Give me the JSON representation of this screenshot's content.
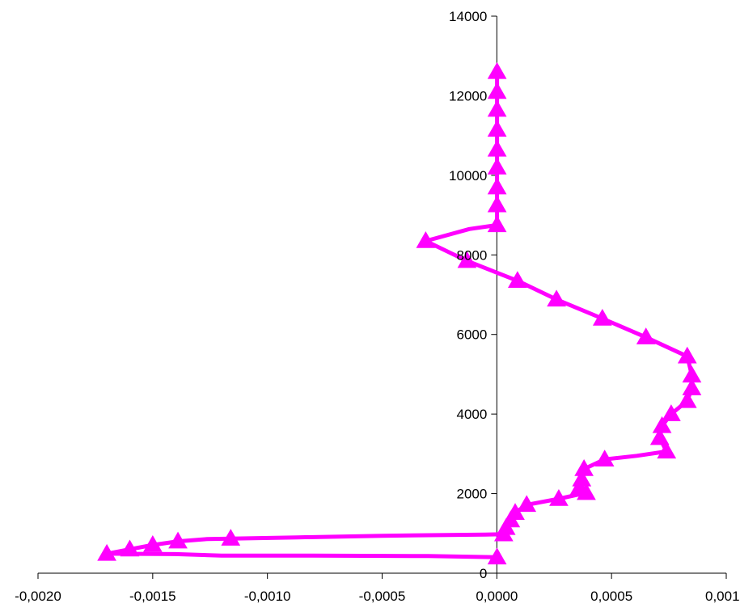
{
  "chart_data": {
    "type": "line",
    "title": "",
    "xlabel": "",
    "ylabel": "",
    "xlim": [
      -0.002,
      0.001
    ],
    "ylim": [
      0,
      14000
    ],
    "grid": false,
    "legend": "none",
    "x_ticks": [
      {
        "value": -0.002,
        "label": "-0,0020"
      },
      {
        "value": -0.0015,
        "label": "-0,0015"
      },
      {
        "value": -0.001,
        "label": "-0,0010"
      },
      {
        "value": -0.0005,
        "label": "-0,0005"
      },
      {
        "value": 0.0,
        "label": "0,0000"
      },
      {
        "value": 0.0005,
        "label": "0,0005"
      },
      {
        "value": 0.001,
        "label": "0,0010"
      }
    ],
    "y_ticks": [
      {
        "value": 0,
        "label": "0"
      },
      {
        "value": 2000,
        "label": "2000"
      },
      {
        "value": 4000,
        "label": "4000"
      },
      {
        "value": 6000,
        "label": "6000"
      },
      {
        "value": 8000,
        "label": "8000"
      },
      {
        "value": 10000,
        "label": "10000"
      },
      {
        "value": 12000,
        "label": "12000"
      },
      {
        "value": 14000,
        "label": "14000"
      }
    ],
    "series": [
      {
        "color": "#ff00ff",
        "marker": "triangle",
        "points": [
          {
            "x": 1e-06,
            "y": 12600,
            "m": true
          },
          {
            "x": 1e-06,
            "y": 12100,
            "m": true
          },
          {
            "x": 1e-06,
            "y": 11650,
            "m": true
          },
          {
            "x": 1e-06,
            "y": 11150,
            "m": true
          },
          {
            "x": 1e-06,
            "y": 10650,
            "m": true
          },
          {
            "x": 1e-06,
            "y": 10200,
            "m": true
          },
          {
            "x": 1e-06,
            "y": 9700,
            "m": true
          },
          {
            "x": 1e-06,
            "y": 9250,
            "m": true
          },
          {
            "x": 1e-06,
            "y": 8750,
            "m": true
          },
          {
            "x": -0.00012,
            "y": 8650,
            "m": false
          },
          {
            "x": -0.00031,
            "y": 8350,
            "m": true
          },
          {
            "x": -0.00013,
            "y": 7850,
            "m": true
          },
          {
            "x": 9e-05,
            "y": 7350,
            "m": true
          },
          {
            "x": 0.00026,
            "y": 6880,
            "m": true
          },
          {
            "x": 0.00046,
            "y": 6400,
            "m": true
          },
          {
            "x": 0.00065,
            "y": 5930,
            "m": true
          },
          {
            "x": 0.00083,
            "y": 5450,
            "m": true
          },
          {
            "x": 0.00085,
            "y": 4970,
            "m": true
          },
          {
            "x": 0.00085,
            "y": 4650,
            "m": true
          },
          {
            "x": 0.00083,
            "y": 4330,
            "m": true
          },
          {
            "x": 0.00076,
            "y": 4000,
            "m": true
          },
          {
            "x": 0.00072,
            "y": 3700,
            "m": true
          },
          {
            "x": 0.00071,
            "y": 3400,
            "m": true
          },
          {
            "x": 0.00074,
            "y": 3060,
            "m": true
          },
          {
            "x": 0.00061,
            "y": 2950,
            "m": false
          },
          {
            "x": 0.00047,
            "y": 2860,
            "m": true
          },
          {
            "x": 0.00038,
            "y": 2620,
            "m": true
          },
          {
            "x": 0.00037,
            "y": 2360,
            "m": true
          },
          {
            "x": 0.00036,
            "y": 2150,
            "m": true
          },
          {
            "x": 0.00039,
            "y": 2020,
            "m": true
          },
          {
            "x": 0.00027,
            "y": 1870,
            "m": true
          },
          {
            "x": 0.00013,
            "y": 1720,
            "m": true
          },
          {
            "x": 8e-05,
            "y": 1520,
            "m": true
          },
          {
            "x": 6e-05,
            "y": 1330,
            "m": true
          },
          {
            "x": 4e-05,
            "y": 1140,
            "m": true
          },
          {
            "x": 3e-05,
            "y": 980,
            "m": true
          },
          {
            "x": -5e-05,
            "y": 970,
            "m": false
          },
          {
            "x": -0.0005,
            "y": 940,
            "m": false
          },
          {
            "x": -0.00087,
            "y": 900,
            "m": false
          },
          {
            "x": -0.00116,
            "y": 870,
            "m": true
          },
          {
            "x": -0.00126,
            "y": 860,
            "m": false
          },
          {
            "x": -0.00139,
            "y": 800,
            "m": true
          },
          {
            "x": -0.0015,
            "y": 710,
            "m": true
          },
          {
            "x": -0.0016,
            "y": 600,
            "m": true
          },
          {
            "x": -0.0017,
            "y": 490,
            "m": true
          },
          {
            "x": -0.0014,
            "y": 480,
            "m": false
          },
          {
            "x": -0.0012,
            "y": 440,
            "m": false
          },
          {
            "x": -0.0008,
            "y": 440,
            "m": false
          },
          {
            "x": -0.0003,
            "y": 430,
            "m": false
          },
          {
            "x": 1e-06,
            "y": 400,
            "m": true
          }
        ]
      }
    ]
  }
}
